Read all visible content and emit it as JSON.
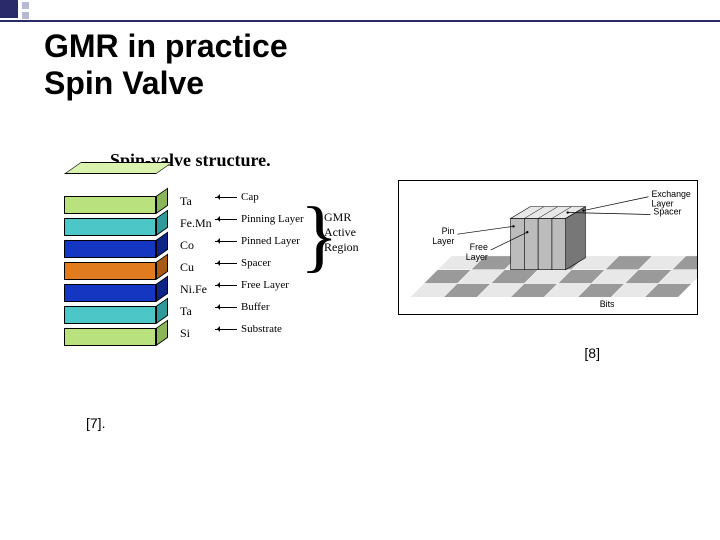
{
  "title_line1": "GMR in practice",
  "title_line2": "Spin Valve",
  "subtitle": "Spin-valve structure.",
  "layers": [
    {
      "material": "Ta",
      "fn": "Cap",
      "front": "#b9e27e",
      "top": "#d9f2ae",
      "side": "#8ab558"
    },
    {
      "material": "Fe.Mn",
      "fn": "Pinning Layer",
      "front": "#4cc6c6",
      "top": "#8de0e0",
      "side": "#2f9a9a"
    },
    {
      "material": "Co",
      "fn": "Pinned Layer",
      "front": "#1436c0",
      "top": "#3a5ae6",
      "side": "#0d2488"
    },
    {
      "material": "Cu",
      "fn": "Spacer",
      "front": "#e07b1f",
      "top": "#f0a85a",
      "side": "#a85a13"
    },
    {
      "material": "Ni.Fe",
      "fn": "Free Layer",
      "front": "#1436c0",
      "top": "#3a5ae6",
      "side": "#0d2488"
    },
    {
      "material": "Ta",
      "fn": "Buffer",
      "front": "#4cc6c6",
      "top": "#8de0e0",
      "side": "#2f9a9a"
    },
    {
      "material": "Si",
      "fn": "Substrate",
      "front": "#b9e27e",
      "top": "#d9f2ae",
      "side": "#8ab558"
    }
  ],
  "active_label_l1": "GMR",
  "active_label_l2": "Active",
  "active_label_l3": "Region",
  "head": {
    "labels": {
      "exchange": "Exchange\nLayer",
      "spacer": "Spacer",
      "pin": "Pin\nLayer",
      "free": "Free\nLayer",
      "bits": "Bits"
    },
    "colors": {
      "floor": "#cfcfcf",
      "bit_light": "#e8e8e8",
      "bit_dark": "#9a9a9a",
      "side": "#777777",
      "front": "#bcbcbc",
      "line": "#000000"
    }
  },
  "cite_left": "[7].",
  "cite_right": "[8]"
}
